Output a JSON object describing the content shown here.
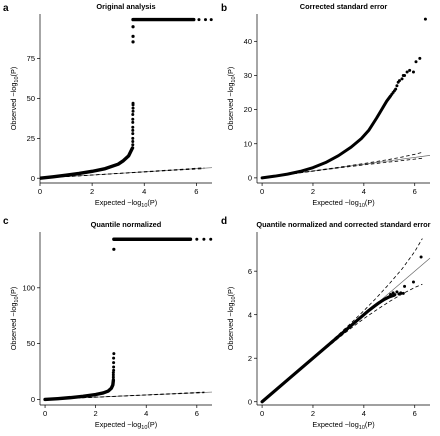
{
  "chart_data": [
    {
      "panel": "a",
      "type": "scatter",
      "title": "Original analysis",
      "xlabel": {
        "main": "Expected −log",
        "sub": "10",
        "tail": "(P)"
      },
      "ylabel": {
        "main": "Observed −log",
        "sub": "10",
        "tail": "(P)"
      },
      "xlim": [
        0,
        6.6
      ],
      "ylim": [
        -3,
        103
      ],
      "xticks": [
        0,
        2,
        4,
        6
      ],
      "yticks": [
        0,
        25,
        50,
        75
      ],
      "reference_line": {
        "x": [
          0,
          6.6
        ],
        "y": [
          0,
          6.6
        ]
      },
      "ci_upper": {
        "x": [
          1,
          2,
          3,
          4,
          5,
          5.5,
          6,
          6.3
        ],
        "y": [
          1.02,
          2.04,
          3.06,
          4.1,
          5.15,
          5.7,
          6.25,
          6.6
        ]
      },
      "ci_lower": {
        "x": [
          1,
          2,
          3,
          4,
          5,
          5.5,
          6,
          6.3
        ],
        "y": [
          0.98,
          1.96,
          2.94,
          3.9,
          4.85,
          5.3,
          5.75,
          6.0
        ]
      },
      "curve": {
        "x": [
          0,
          0.5,
          1,
          1.5,
          2,
          2.5,
          3,
          3.2,
          3.4,
          3.55
        ],
        "y": [
          0,
          0.9,
          1.9,
          3.0,
          4.3,
          6.0,
          8.8,
          11,
          14,
          19
        ],
        "width": 3.4
      },
      "points": {
        "x": [
          3.56,
          3.56,
          3.56,
          3.56,
          3.56,
          3.56,
          3.56,
          3.56,
          3.56,
          3.57,
          3.57,
          3.57,
          3.57
        ],
        "y": [
          21,
          23,
          25,
          28,
          30,
          32,
          35,
          37,
          40,
          42,
          44,
          46,
          47
        ]
      },
      "plateau_points": {
        "x": [
          3.57,
          3.57,
          3.57
        ],
        "y": [
          85.5,
          89,
          95
        ]
      },
      "top_band": {
        "x_start": 3.57,
        "x_end": 5.9,
        "y": 99.5,
        "width": 3.4
      },
      "top_points": {
        "x": [
          6.1,
          6.35,
          6.57
        ],
        "y": [
          99.5,
          99.5,
          99.5
        ]
      }
    },
    {
      "panel": "b",
      "type": "scatter",
      "title": "Corrected standard error",
      "xlabel": {
        "main": "Expected −log",
        "sub": "10",
        "tail": "(P)"
      },
      "ylabel": {
        "main": "Observed −log",
        "sub": "10",
        "tail": "(P)"
      },
      "xlim": [
        -0.2,
        6.6
      ],
      "ylim": [
        -1.5,
        48
      ],
      "xticks": [
        0,
        2,
        4,
        6
      ],
      "yticks": [
        0,
        10,
        20,
        30,
        40
      ],
      "reference_line": {
        "x": [
          0,
          6.6
        ],
        "y": [
          0,
          6.6
        ]
      },
      "ci_upper": {
        "x": [
          1,
          2,
          3,
          4,
          5,
          5.5,
          6,
          6.3
        ],
        "y": [
          1.02,
          2.05,
          3.1,
          4.2,
          5.4,
          6.1,
          6.9,
          7.5
        ]
      },
      "ci_lower": {
        "x": [
          1,
          2,
          3,
          4,
          5,
          5.5,
          6,
          6.3
        ],
        "y": [
          0.98,
          1.95,
          2.9,
          3.8,
          4.65,
          5.05,
          5.5,
          5.75
        ]
      },
      "curve": {
        "x": [
          0,
          0.5,
          1,
          1.5,
          2,
          2.5,
          3,
          3.5,
          3.9,
          4.2,
          4.5,
          4.7,
          4.9,
          5.05
        ],
        "y": [
          0,
          0.5,
          1.1,
          1.9,
          3.0,
          4.5,
          6.5,
          9.0,
          11.5,
          14,
          17.5,
          20,
          22.5,
          24
        ],
        "width": 3.0
      },
      "points": {
        "x": [
          5.1,
          5.15,
          5.2,
          5.25,
          5.3,
          5.35,
          5.4,
          5.5,
          5.55,
          5.6,
          5.7,
          5.8,
          5.95,
          6.05,
          6.2,
          6.42
        ],
        "y": [
          24.5,
          25,
          25.5,
          26,
          27,
          28,
          28.5,
          29,
          30,
          30,
          31,
          31.5,
          31,
          34,
          35,
          46.5
        ]
      }
    },
    {
      "panel": "c",
      "type": "scatter",
      "title": "Quantile normalized",
      "xlabel": {
        "main": "Expected −log",
        "sub": "10",
        "tail": "(P)"
      },
      "ylabel": {
        "main": "Observed −log",
        "sub": "10",
        "tail": "(P)"
      },
      "xlim": [
        -0.2,
        6.6
      ],
      "ylim": [
        -5,
        150
      ],
      "xticks": [
        0,
        2,
        4,
        6
      ],
      "yticks": [
        0,
        50,
        100
      ],
      "reference_line": {
        "x": [
          0,
          6.6
        ],
        "y": [
          0,
          6.6
        ]
      },
      "ci_upper": {
        "x": [
          1,
          2,
          3,
          4,
          5,
          5.5,
          6,
          6.3
        ],
        "y": [
          1.02,
          2.04,
          3.06,
          4.1,
          5.15,
          5.7,
          6.25,
          6.6
        ]
      },
      "ci_lower": {
        "x": [
          1,
          2,
          3,
          4,
          5,
          5.5,
          6,
          6.3
        ],
        "y": [
          0.98,
          1.96,
          2.94,
          3.9,
          4.85,
          5.3,
          5.75,
          6.0
        ]
      },
      "curve": {
        "x": [
          0,
          0.5,
          1,
          1.5,
          2,
          2.3,
          2.5,
          2.62,
          2.68,
          2.7
        ],
        "y": [
          0,
          0.7,
          1.6,
          2.8,
          4.4,
          5.8,
          7.5,
          10,
          13,
          17
        ],
        "width": 3.4
      },
      "points": {
        "x": [
          2.7,
          2.7,
          2.7,
          2.7,
          2.71,
          2.71,
          2.71,
          2.71,
          2.72
        ],
        "y": [
          18,
          20,
          22,
          24,
          26,
          29,
          33,
          37,
          41
        ]
      },
      "plateau_points": {
        "x": [
          2.72
        ],
        "y": [
          134.5
        ]
      },
      "top_band": {
        "x_start": 2.72,
        "x_end": 5.75,
        "y": 143.5,
        "width": 3.4
      },
      "top_points": {
        "x": [
          6.0,
          6.28,
          6.55
        ],
        "y": [
          143.5,
          143.5,
          143.5
        ]
      }
    },
    {
      "panel": "d",
      "type": "scatter",
      "title": "Quantile normalized and corrected standard error",
      "xlabel": {
        "main": "Expected −log",
        "sub": "10",
        "tail": "(P)"
      },
      "ylabel": {
        "main": "Observed −log",
        "sub": "10",
        "tail": "(P)"
      },
      "xlim": [
        -0.2,
        6.6
      ],
      "ylim": [
        -0.15,
        7.8
      ],
      "xticks": [
        0,
        2,
        4,
        6
      ],
      "yticks": [
        0,
        2,
        4,
        6
      ],
      "reference_line": {
        "x": [
          0,
          6.6
        ],
        "y": [
          0,
          6.6
        ]
      },
      "ci_upper": {
        "x": [
          0,
          1,
          2,
          3,
          3.5,
          4,
          4.5,
          5,
          5.5,
          6,
          6.3
        ],
        "y": [
          0,
          1.02,
          2.04,
          3.08,
          3.62,
          4.18,
          4.78,
          5.42,
          6.1,
          6.9,
          7.5
        ]
      },
      "ci_lower": {
        "x": [
          0,
          1,
          2,
          3,
          3.5,
          4,
          4.5,
          5,
          5.5,
          6,
          6.3
        ],
        "y": [
          0,
          0.98,
          1.96,
          2.92,
          3.38,
          3.82,
          4.22,
          4.6,
          4.95,
          5.25,
          5.4
        ]
      },
      "curve": {
        "x": [
          0,
          1,
          2,
          3,
          3.5,
          4,
          4.2,
          4.4,
          4.6,
          4.8,
          5.0,
          5.2
        ],
        "y": [
          0,
          1.0,
          2.0,
          3.0,
          3.5,
          4.0,
          4.2,
          4.38,
          4.55,
          4.7,
          4.82,
          4.9
        ],
        "width": 3.2
      },
      "points": {
        "x": [
          5.05,
          5.15,
          5.22,
          5.3,
          5.38,
          5.45,
          5.55,
          5.6,
          5.95,
          6.25
        ],
        "y": [
          4.93,
          5.0,
          4.92,
          5.05,
          4.95,
          5.0,
          4.98,
          5.3,
          5.5,
          6.65
        ]
      }
    }
  ]
}
